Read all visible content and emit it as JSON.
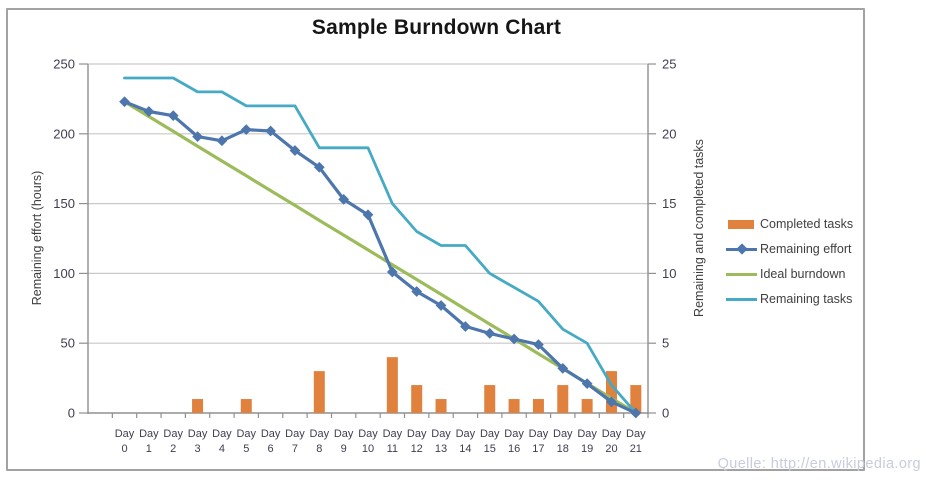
{
  "title": "Sample Burndown Chart",
  "watermark": "Quelle: http://en.wikipedia.org",
  "axes": {
    "left_title": "Remaining effort (hours)",
    "right_title": "Remaining and completed tasks",
    "x_prefix": "Day",
    "x_values": [
      "0",
      "1",
      "2",
      "3",
      "4",
      "5",
      "6",
      "7",
      "8",
      "9",
      "10",
      "11",
      "12",
      "13",
      "14",
      "15",
      "16",
      "17",
      "18",
      "19",
      "20",
      "21"
    ]
  },
  "legend": {
    "items": [
      {
        "label": "Completed tasks"
      },
      {
        "label": "Remaining effort"
      },
      {
        "label": "Ideal burndown"
      },
      {
        "label": "Remaining tasks"
      }
    ]
  },
  "colors": {
    "completed_tasks": "#e0813e",
    "remaining_effort": "#4c76ac",
    "ideal_burndown": "#9cbb5b",
    "remaining_tasks": "#46aac4",
    "gridline": "#c9c9c9",
    "axis": "#909090",
    "tick_label": "#3e3e50",
    "title": "#161616",
    "watermark": "#c8ccdd"
  },
  "chart_data": {
    "type": "line",
    "subtype": "combo-bar-line",
    "title": "Sample Burndown Chart",
    "grid": true,
    "legend_position": "right",
    "categories": [
      "Day 0",
      "Day 1",
      "Day 2",
      "Day 3",
      "Day 4",
      "Day 5",
      "Day 6",
      "Day 7",
      "Day 8",
      "Day 9",
      "Day 10",
      "Day 11",
      "Day 12",
      "Day 13",
      "Day 14",
      "Day 15",
      "Day 16",
      "Day 17",
      "Day 18",
      "Day 19",
      "Day 20",
      "Day 21"
    ],
    "left_axis": {
      "label": "Remaining effort (hours)",
      "range": [
        0,
        250
      ],
      "ticks": [
        0,
        50,
        100,
        150,
        200,
        250
      ]
    },
    "right_axis": {
      "label": "Remaining and completed tasks",
      "range": [
        0,
        25
      ],
      "ticks": [
        0,
        5,
        10,
        15,
        20,
        25
      ]
    },
    "series": [
      {
        "name": "Completed tasks",
        "type": "bar",
        "axis": "right",
        "color": "#e0813e",
        "values": [
          0,
          0,
          0,
          1,
          0,
          1,
          0,
          0,
          3,
          0,
          0,
          4,
          2,
          1,
          0,
          2,
          1,
          1,
          2,
          1,
          3,
          2
        ]
      },
      {
        "name": "Remaining effort",
        "type": "line",
        "marker": "diamond",
        "axis": "left",
        "color": "#4c76ac",
        "values": [
          223,
          216,
          213,
          198,
          195,
          203,
          202,
          188,
          176,
          153,
          142,
          101,
          87,
          77,
          62,
          57,
          53,
          49,
          32,
          21,
          8,
          0
        ]
      },
      {
        "name": "Ideal burndown",
        "type": "line",
        "axis": "left",
        "color": "#9cbb5b",
        "values": [
          223,
          212.4,
          201.8,
          191.1,
          180.5,
          169.9,
          159.3,
          148.7,
          138.0,
          127.4,
          116.8,
          106.2,
          95.6,
          85.0,
          74.3,
          63.7,
          53.1,
          42.5,
          31.9,
          21.2,
          10.6,
          0
        ]
      },
      {
        "name": "Remaining tasks",
        "type": "line",
        "axis": "right",
        "color": "#46aac4",
        "values": [
          24,
          24,
          24,
          23,
          23,
          22,
          22,
          22,
          19,
          19,
          19,
          15,
          13,
          12,
          12,
          10,
          9,
          8,
          6,
          5,
          2,
          0
        ]
      }
    ]
  }
}
